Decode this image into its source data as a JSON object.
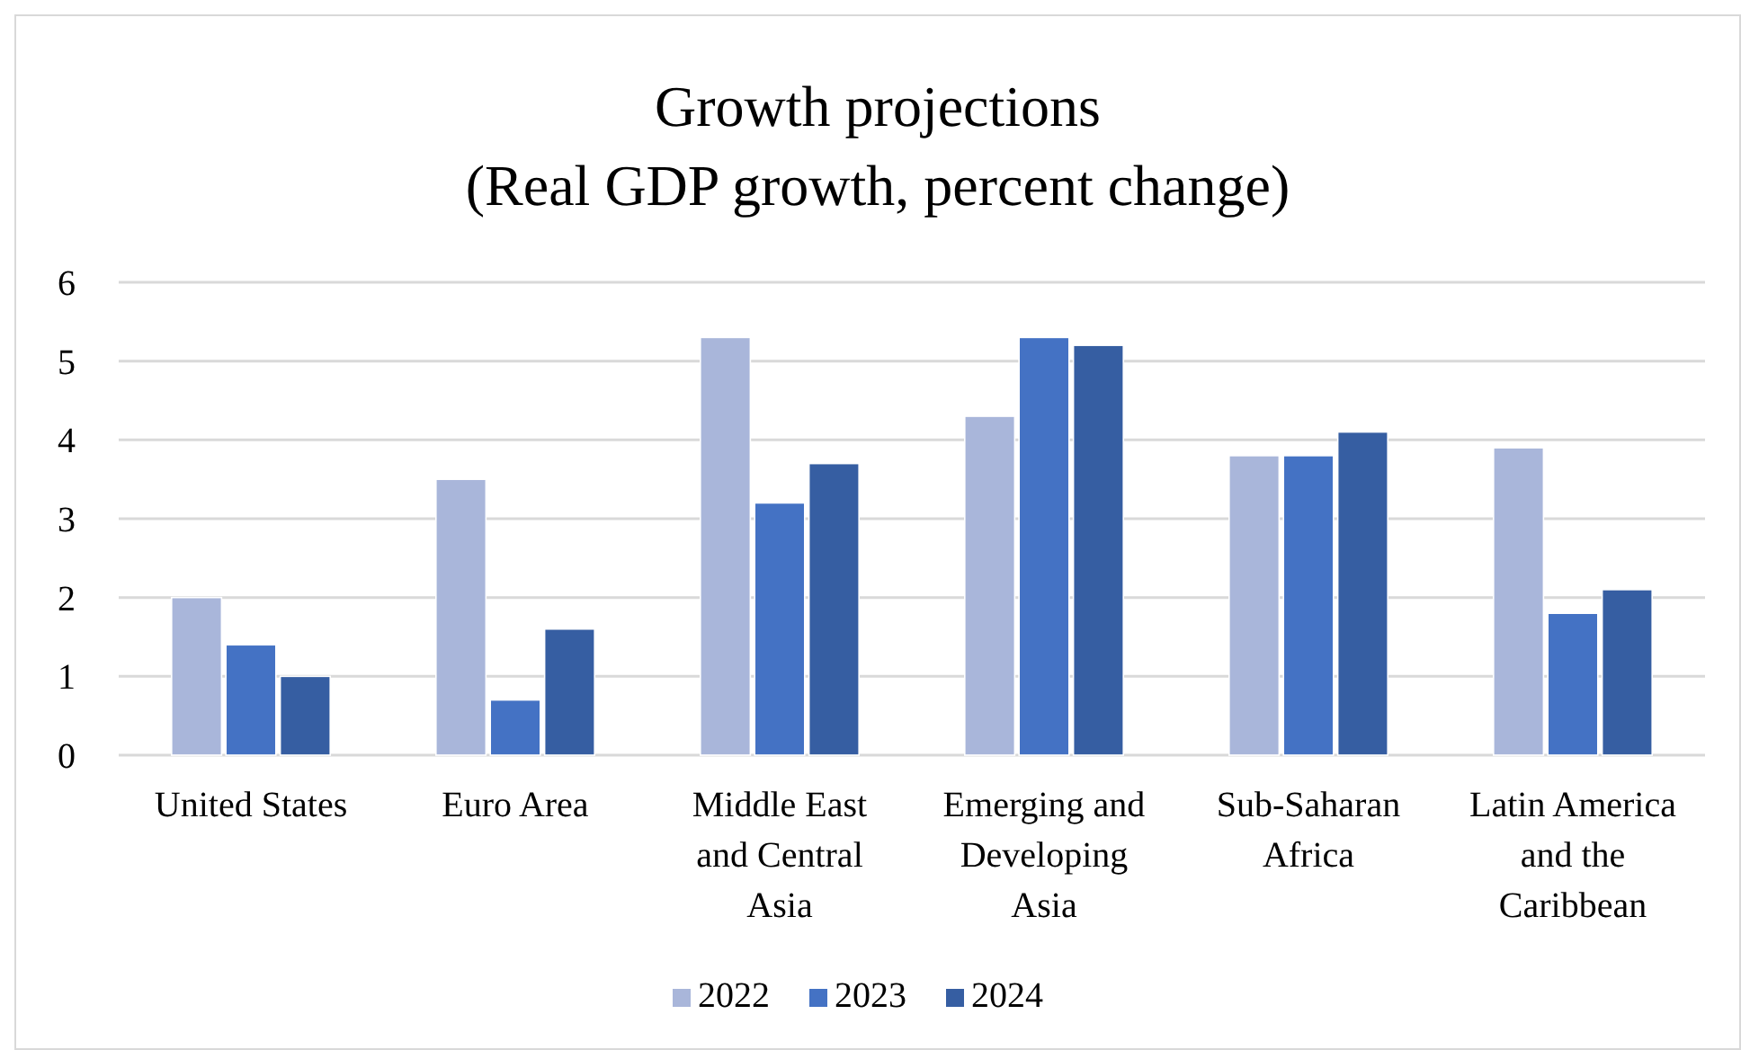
{
  "chart_data": {
    "type": "bar",
    "title": "Growth projections",
    "subtitle": "(Real GDP growth, percent change)",
    "categories": [
      "United States",
      "Euro Area",
      "Middle East and Central Asia",
      "Emerging and Developing Asia",
      "Sub-Saharan Africa",
      "Latin America and the Caribbean"
    ],
    "series": [
      {
        "name": "2022",
        "color": "#a9b6da",
        "values": [
          2.0,
          3.5,
          5.3,
          4.3,
          3.8,
          3.9
        ]
      },
      {
        "name": "2023",
        "color": "#4472c4",
        "values": [
          1.4,
          0.7,
          3.2,
          5.3,
          3.8,
          1.8
        ]
      },
      {
        "name": "2024",
        "color": "#365ea2",
        "values": [
          1.0,
          1.6,
          3.7,
          5.2,
          4.1,
          2.1
        ]
      }
    ],
    "ylim": [
      0,
      6
    ],
    "yticks": [
      0,
      1,
      2,
      3,
      4,
      5,
      6
    ],
    "grid": "y",
    "legend": "bottom"
  }
}
